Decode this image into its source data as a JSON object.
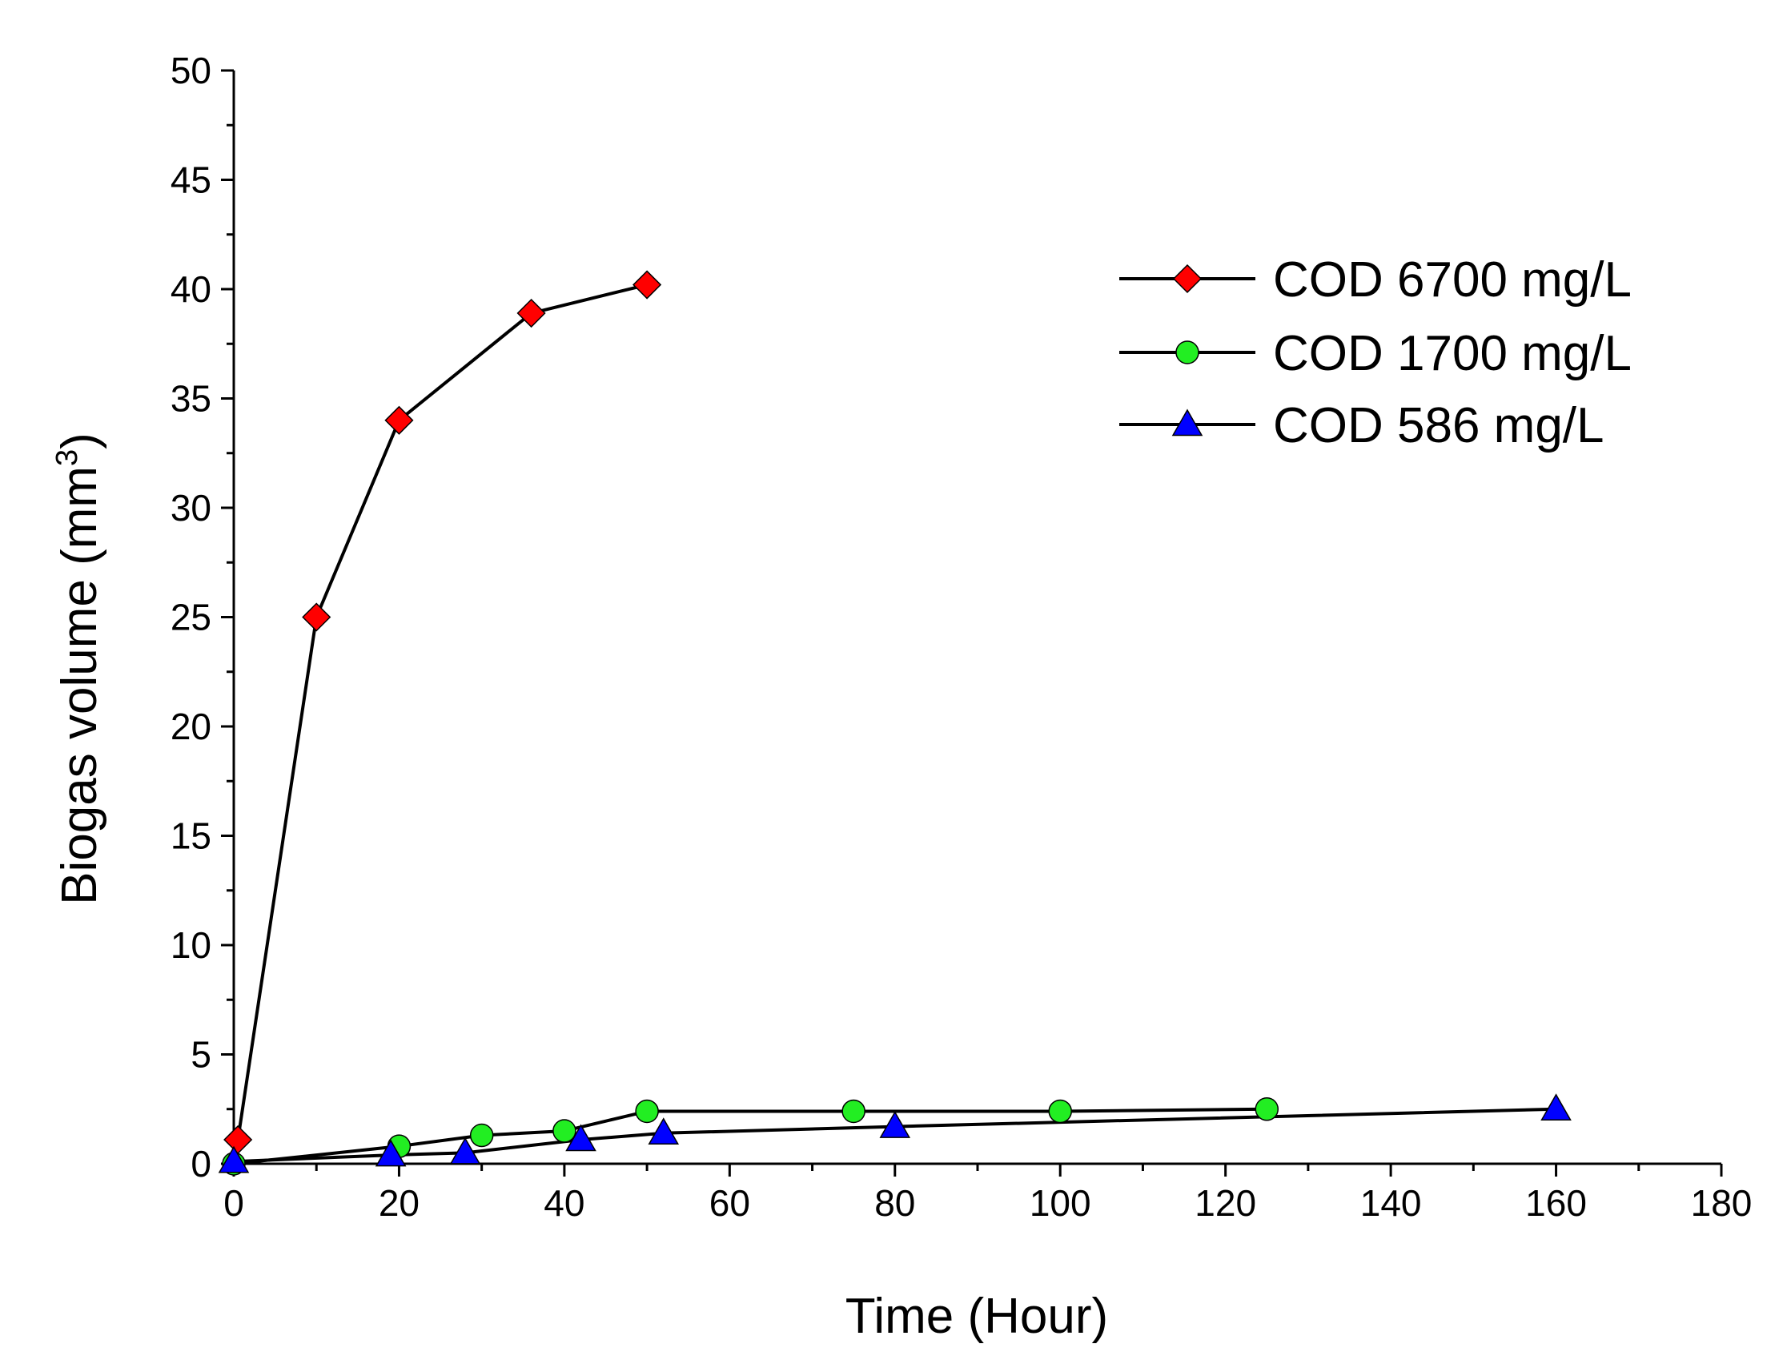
{
  "chart_data": {
    "type": "line",
    "xlabel": "Time (Hour)",
    "ylabel": "Biogas volume (mm",
    "ylabel_sup": "3",
    "ylabel_close": ")",
    "xlim": [
      0,
      180
    ],
    "ylim": [
      0,
      50
    ],
    "x_major_ticks": [
      0,
      20,
      40,
      60,
      80,
      100,
      120,
      140,
      160,
      180
    ],
    "y_major_ticks": [
      0,
      5,
      10,
      15,
      20,
      25,
      30,
      35,
      40,
      45,
      50
    ],
    "grid": false,
    "legend_position": "top-right",
    "series": [
      {
        "name": "COD 6700 mg/L",
        "marker": "diamond",
        "color": "#ff0000",
        "x": [
          0.5,
          10,
          20,
          36,
          50
        ],
        "y": [
          1.1,
          25.0,
          34.0,
          38.9,
          40.2
        ]
      },
      {
        "name": "COD 1700 mg/L",
        "marker": "circle",
        "color": "#22ee22",
        "x": [
          0,
          20,
          30,
          40,
          50,
          75,
          100,
          125
        ],
        "y": [
          0,
          0.8,
          1.3,
          1.5,
          2.4,
          2.4,
          2.4,
          2.5
        ]
      },
      {
        "name": "COD 586 mg/L",
        "marker": "triangle",
        "color": "#0000ff",
        "x": [
          0,
          19,
          28,
          42,
          52,
          80,
          160
        ],
        "y": [
          0.1,
          0.4,
          0.5,
          1.1,
          1.4,
          1.7,
          2.5
        ]
      }
    ]
  }
}
